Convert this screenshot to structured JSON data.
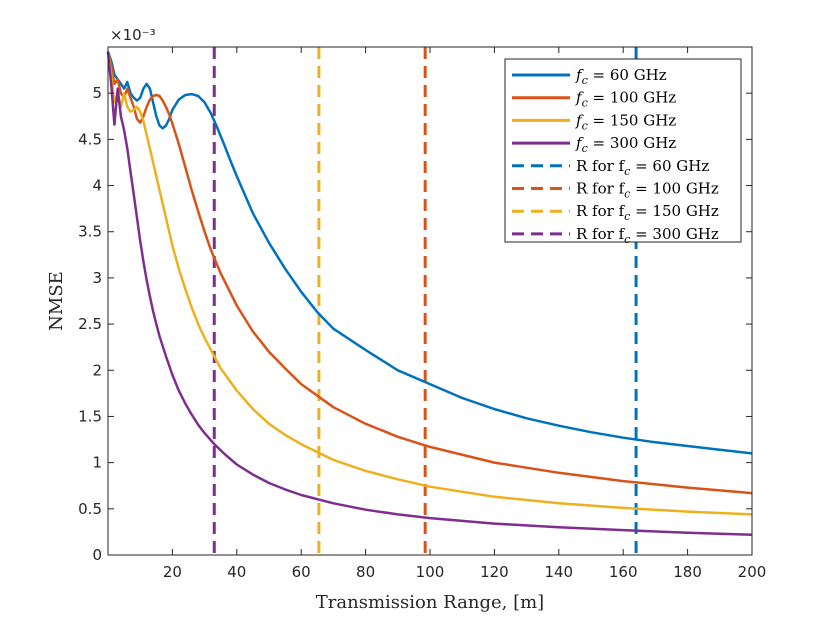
{
  "chart_data": {
    "type": "line",
    "xlabel": "Transmission Range, [m]",
    "ylabel": "NMSE",
    "y_exponent_label": "×10⁻³",
    "xlim": [
      0,
      200
    ],
    "ylim": [
      0,
      5.5
    ],
    "y_scale_note": "values are ×10^-3",
    "x_ticks": [
      20,
      40,
      60,
      80,
      100,
      120,
      140,
      160,
      180,
      200
    ],
    "y_ticks": [
      0,
      0.5,
      1,
      1.5,
      2,
      2.5,
      3,
      3.5,
      4,
      4.5,
      5
    ],
    "legend_position": "top-right",
    "series": [
      {
        "name": "f_c = 60 GHz",
        "legend_main": "f",
        "legend_sub": "c",
        "legend_rest": " = 60 GHz",
        "color": "#0072BD",
        "style": "solid",
        "x": [
          0,
          1,
          2,
          3,
          4,
          5,
          6,
          7,
          8,
          9,
          10,
          11,
          12,
          13,
          14,
          15,
          16,
          17,
          18,
          19,
          20,
          22,
          24,
          26,
          28,
          30,
          32,
          34,
          36,
          38,
          40,
          45,
          50,
          55,
          60,
          65,
          70,
          80,
          90,
          100,
          110,
          120,
          130,
          140,
          150,
          160,
          170,
          180,
          190,
          200
        ],
        "y": [
          5.45,
          5.35,
          5.2,
          5.15,
          5.1,
          5.05,
          5.12,
          5.0,
          4.95,
          4.92,
          4.95,
          5.05,
          5.1,
          5.05,
          4.9,
          4.75,
          4.65,
          4.62,
          4.65,
          4.72,
          4.82,
          4.93,
          4.98,
          4.99,
          4.97,
          4.9,
          4.78,
          4.62,
          4.45,
          4.27,
          4.1,
          3.7,
          3.38,
          3.1,
          2.85,
          2.63,
          2.45,
          2.22,
          2.0,
          1.85,
          1.7,
          1.58,
          1.48,
          1.4,
          1.33,
          1.27,
          1.22,
          1.18,
          1.14,
          1.1
        ]
      },
      {
        "name": "f_c = 100 GHz",
        "legend_main": "f",
        "legend_sub": "c",
        "legend_rest": " = 100 GHz",
        "color": "#D95319",
        "style": "solid",
        "x": [
          0,
          1,
          2,
          3,
          4,
          5,
          6,
          7,
          8,
          9,
          10,
          11,
          12,
          13,
          14,
          15,
          16,
          17,
          18,
          19,
          20,
          22,
          24,
          26,
          28,
          30,
          32,
          35,
          40,
          45,
          50,
          55,
          60,
          70,
          80,
          90,
          100,
          120,
          140,
          160,
          180,
          200
        ],
        "y": [
          5.45,
          5.3,
          5.1,
          5.15,
          5.0,
          4.95,
          5.05,
          4.95,
          4.85,
          4.72,
          4.68,
          4.75,
          4.85,
          4.93,
          4.97,
          4.98,
          4.97,
          4.92,
          4.85,
          4.77,
          4.67,
          4.45,
          4.2,
          3.95,
          3.72,
          3.5,
          3.3,
          3.05,
          2.7,
          2.42,
          2.2,
          2.02,
          1.85,
          1.6,
          1.42,
          1.28,
          1.17,
          1.0,
          0.89,
          0.8,
          0.73,
          0.67
        ]
      },
      {
        "name": "f_c = 150 GHz",
        "legend_main": "f",
        "legend_sub": "c",
        "legend_rest": " = 150 GHz",
        "color": "#EDB120",
        "style": "solid",
        "x": [
          0,
          1,
          2,
          3,
          4,
          5,
          6,
          7,
          8,
          9,
          10,
          11,
          12,
          13,
          14,
          15,
          16,
          18,
          20,
          22,
          24,
          26,
          28,
          30,
          35,
          40,
          45,
          50,
          55,
          60,
          70,
          80,
          90,
          100,
          120,
          140,
          160,
          180,
          200
        ],
        "y": [
          5.45,
          5.2,
          4.9,
          5.0,
          4.85,
          5.0,
          4.85,
          4.8,
          4.82,
          4.85,
          4.8,
          4.7,
          4.55,
          4.4,
          4.25,
          4.1,
          3.95,
          3.65,
          3.35,
          3.1,
          2.88,
          2.68,
          2.5,
          2.35,
          2.02,
          1.78,
          1.58,
          1.42,
          1.3,
          1.2,
          1.03,
          0.91,
          0.82,
          0.74,
          0.63,
          0.56,
          0.51,
          0.47,
          0.44
        ]
      },
      {
        "name": "f_c = 300 GHz",
        "legend_main": "f",
        "legend_sub": "c",
        "legend_rest": " = 300 GHz",
        "color": "#7E2F8E",
        "style": "solid",
        "x": [
          0,
          1,
          2,
          3,
          4,
          5,
          6,
          7,
          8,
          9,
          10,
          11,
          12,
          13,
          14,
          15,
          16,
          18,
          20,
          22,
          24,
          26,
          28,
          30,
          33,
          36,
          40,
          45,
          50,
          55,
          60,
          70,
          80,
          90,
          100,
          120,
          140,
          160,
          180,
          200
        ],
        "y": [
          5.45,
          5.1,
          4.66,
          5.05,
          4.75,
          4.6,
          4.4,
          4.15,
          3.9,
          3.65,
          3.4,
          3.18,
          2.98,
          2.8,
          2.64,
          2.5,
          2.37,
          2.15,
          1.95,
          1.78,
          1.64,
          1.52,
          1.41,
          1.32,
          1.2,
          1.1,
          0.98,
          0.87,
          0.78,
          0.71,
          0.65,
          0.56,
          0.49,
          0.44,
          0.4,
          0.34,
          0.3,
          0.27,
          0.24,
          0.22
        ]
      },
      {
        "name": "R for f_c = 60 GHz",
        "legend_main": "R for f",
        "legend_sub": "c",
        "legend_rest": " = 60 GHz",
        "color": "#0072BD",
        "style": "dashed",
        "vline_x": 164
      },
      {
        "name": "R for f_c = 100 GHz",
        "legend_main": "R for f",
        "legend_sub": "c",
        "legend_rest": " = 100 GHz",
        "color": "#D95319",
        "style": "dashed",
        "vline_x": 98.5
      },
      {
        "name": "R for f_c = 150 GHz",
        "legend_main": "R for f",
        "legend_sub": "c",
        "legend_rest": " = 150 GHz",
        "color": "#EDB120",
        "style": "dashed",
        "vline_x": 65.5
      },
      {
        "name": "R for f_c = 300 GHz",
        "legend_main": "R for f",
        "legend_sub": "c",
        "legend_rest": " = 300 GHz",
        "color": "#7E2F8E",
        "style": "dashed",
        "vline_x": 33
      }
    ]
  }
}
